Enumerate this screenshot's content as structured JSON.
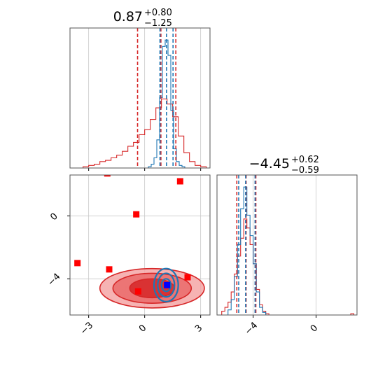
{
  "colors": {
    "red": "#d62728",
    "blue": "#1f77b4",
    "marker_red": "#ff0000",
    "marker_blue": "#0000ff",
    "grid": "#c8c8c8",
    "spine": "#555555",
    "contour_fill_light": "#f4a6a6",
    "contour_fill_dark": "#d62728"
  },
  "chart_data": [
    {
      "panel": "histogram-param-1",
      "type": "step-histogram",
      "title": {
        "value": "0.87",
        "plus": "+0.80",
        "minus": "−1.25"
      },
      "xlim": [
        -4.0,
        3.5
      ],
      "xticks": [
        -3,
        0,
        3
      ],
      "grid": true,
      "quantiles": {
        "red": [
          -0.38,
          0.87,
          1.67
        ],
        "blue": [
          0.82,
          1.17,
          1.52
        ]
      },
      "series": [
        {
          "color": "red",
          "bin_edges": [
            -3.3,
            -3.0,
            -2.7,
            -2.4,
            -2.1,
            -1.8,
            -1.5,
            -1.2,
            -0.9,
            -0.6,
            -0.3,
            0.0,
            0.3,
            0.6,
            0.9,
            1.2,
            1.5,
            1.8,
            2.1,
            2.4,
            2.7,
            3.0,
            3.3
          ],
          "heights": [
            0.01,
            0.02,
            0.03,
            0.05,
            0.06,
            0.08,
            0.1,
            0.13,
            0.17,
            0.2,
            0.26,
            0.3,
            0.38,
            0.47,
            0.54,
            0.5,
            0.4,
            0.25,
            0.12,
            0.05,
            0.02,
            0.01
          ]
        },
        {
          "color": "blue",
          "bin_edges": [
            0.2,
            0.35,
            0.5,
            0.65,
            0.8,
            0.95,
            1.1,
            1.25,
            1.4,
            1.55,
            1.7,
            1.85,
            2.0,
            2.15
          ],
          "heights": [
            0.01,
            0.03,
            0.08,
            0.22,
            0.55,
            0.95,
            1.0,
            0.88,
            0.45,
            0.15,
            0.05,
            0.02,
            0.01
          ]
        }
      ]
    },
    {
      "panel": "histogram-param-2",
      "type": "step-histogram",
      "title": {
        "value": "−4.45",
        "plus": "+0.62",
        "minus": "−0.59"
      },
      "xlim": [
        -6.3,
        2.6
      ],
      "xticks": [
        -4,
        0
      ],
      "grid": true,
      "quantiles": {
        "red": [
          -5.04,
          -4.45,
          -3.83
        ],
        "blue": [
          -4.92,
          -4.48,
          -3.88
        ]
      },
      "series": [
        {
          "color": "red",
          "bin_edges": [
            -6.0,
            -5.8,
            -5.6,
            -5.4,
            -5.2,
            -5.0,
            -4.8,
            -4.6,
            -4.4,
            -4.2,
            -4.0,
            -3.8,
            -3.6,
            -3.4,
            -3.2,
            -3.0
          ],
          "heights": [
            0.03,
            0.06,
            0.1,
            0.18,
            0.32,
            0.46,
            0.6,
            0.75,
            0.68,
            0.55,
            0.4,
            0.2,
            0.08,
            0.03,
            0.01
          ]
        },
        {
          "color": "blue",
          "bin_edges": [
            -5.6,
            -5.4,
            -5.2,
            -5.0,
            -4.8,
            -4.6,
            -4.4,
            -4.2,
            -4.0,
            -3.8,
            -3.6,
            -3.4,
            -3.2
          ],
          "heights": [
            0.04,
            0.12,
            0.3,
            0.55,
            0.83,
            1.0,
            0.78,
            0.62,
            0.4,
            0.18,
            0.06,
            0.02
          ]
        }
      ],
      "outlier_bin": {
        "x": [
          2.2,
          2.4
        ],
        "height": 0.01
      }
    },
    {
      "panel": "scatter-2d",
      "type": "scatter",
      "xlim": [
        -4.0,
        3.5
      ],
      "ylim": [
        -6.3,
        2.6
      ],
      "xticks": [
        -3,
        0,
        3
      ],
      "yticks": [
        0,
        -4
      ],
      "x_tick_labels": [
        "−3",
        "0",
        "3"
      ],
      "y_tick_labels": [
        "0",
        "−4"
      ],
      "grid": true,
      "red_markers": [
        {
          "x": -2.0,
          "y": 2.7
        },
        {
          "x": 1.9,
          "y": 2.2
        },
        {
          "x": -0.45,
          "y": 0.1
        },
        {
          "x": -3.6,
          "y": -3.0
        },
        {
          "x": -1.9,
          "y": -3.4
        },
        {
          "x": 2.3,
          "y": -3.9
        },
        {
          "x": -0.35,
          "y": -4.8
        }
      ],
      "blue_marker": {
        "x": 1.2,
        "y": -4.4
      },
      "red_contours": {
        "center": {
          "x": 0.4,
          "y": -4.6
        },
        "levels": [
          {
            "rx": 2.8,
            "ry": 1.25
          },
          {
            "rx": 2.1,
            "ry": 0.95
          },
          {
            "rx": 1.2,
            "ry": 0.6
          }
        ]
      },
      "blue_contours": {
        "center": {
          "x": 1.15,
          "y": -4.4
        },
        "levels": [
          {
            "rx": 0.65,
            "ry": 1.05
          },
          {
            "rx": 0.45,
            "ry": 0.75
          },
          {
            "rx": 0.25,
            "ry": 0.4
          }
        ]
      }
    }
  ]
}
